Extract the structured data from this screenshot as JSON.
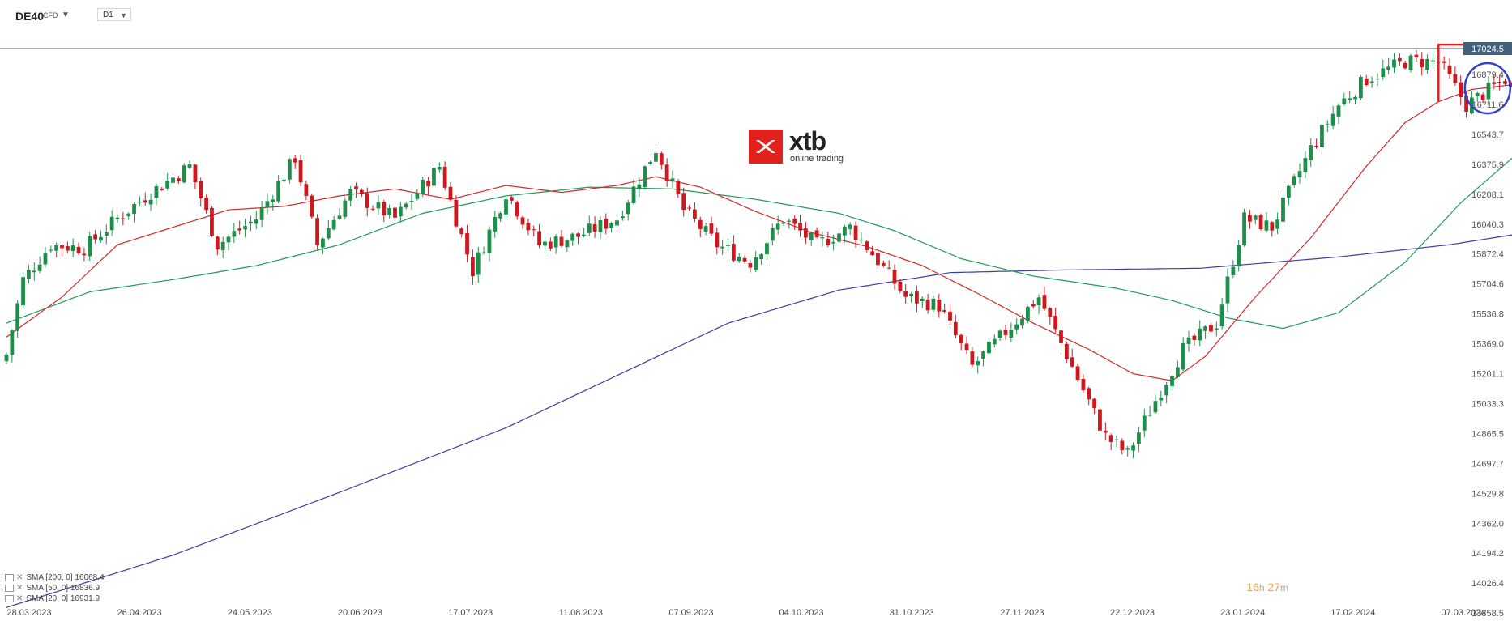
{
  "header": {
    "symbol": "DE40",
    "symbol_suffix": "CFD",
    "timeframe": "D1"
  },
  "logo": {
    "name": "xtb",
    "tagline": "online trading"
  },
  "timer": {
    "hours": "16",
    "h": "h",
    "minutes": "27",
    "m": "m"
  },
  "legend": [
    {
      "text": "SMA [200, 0] 16068.4"
    },
    {
      "text": "SMA [50, 0] 16836.9"
    },
    {
      "text": "SMA [20, 0] 16931.9"
    }
  ],
  "colors": {
    "up": "#1e8f4a",
    "down": "#d0171d",
    "sma20": "#d62728",
    "sma50": "#1f9a5a",
    "sma200": "#3a3fa0",
    "annotation": "#e3201b",
    "circle": "#3240c8"
  },
  "chart_data": {
    "type": "candlestick",
    "instrument": "DE40",
    "timeframe": "D1",
    "current_price": "17024.5",
    "y_ticks": [
      "16879.4",
      "16711.6",
      "16543.7",
      "16375.9",
      "16208.1",
      "16040.3",
      "15872.4",
      "15704.6",
      "15536.8",
      "15369.0",
      "15201.1",
      "15033.3",
      "14865.5",
      "14697.7",
      "14529.8",
      "14362.0",
      "14194.2",
      "14026.4",
      "13858.5"
    ],
    "ylim": [
      13858.5,
      17047.2
    ],
    "x_ticks": [
      "28.03.2023",
      "26.04.2023",
      "24.05.2023",
      "20.06.2023",
      "17.07.2023",
      "11.08.2023",
      "07.09.2023",
      "04.10.2023",
      "31.10.2023",
      "27.11.2023",
      "22.12.2023",
      "23.01.2024",
      "17.02.2024",
      "07.03.2024"
    ],
    "close_anchors": [
      [
        0,
        15270
      ],
      [
        3,
        15700
      ],
      [
        8,
        15900
      ],
      [
        14,
        15880
      ],
      [
        20,
        16050
      ],
      [
        26,
        16200
      ],
      [
        33,
        16350
      ],
      [
        38,
        15900
      ],
      [
        45,
        16050
      ],
      [
        52,
        16400
      ],
      [
        56,
        15900
      ],
      [
        62,
        16200
      ],
      [
        70,
        16050
      ],
      [
        78,
        16350
      ],
      [
        84,
        15750
      ],
      [
        90,
        16200
      ],
      [
        96,
        15900
      ],
      [
        103,
        15950
      ],
      [
        110,
        16050
      ],
      [
        117,
        16450
      ],
      [
        122,
        16100
      ],
      [
        128,
        15900
      ],
      [
        134,
        15800
      ],
      [
        140,
        16050
      ],
      [
        146,
        15900
      ],
      [
        152,
        16000
      ],
      [
        156,
        15850
      ],
      [
        162,
        15600
      ],
      [
        168,
        15550
      ],
      [
        174,
        15200
      ],
      [
        180,
        15400
      ],
      [
        186,
        15600
      ],
      [
        192,
        15200
      ],
      [
        198,
        14800
      ],
      [
        202,
        14700
      ],
      [
        206,
        14950
      ],
      [
        212,
        15300
      ],
      [
        218,
        15450
      ],
      [
        223,
        16050
      ],
      [
        228,
        16000
      ],
      [
        235,
        16450
      ],
      [
        240,
        16700
      ],
      [
        245,
        16850
      ],
      [
        252,
        16950
      ],
      [
        258,
        16950
      ],
      [
        263,
        16700
      ],
      [
        270,
        16850
      ],
      [
        274,
        16600
      ],
      [
        280,
        16800
      ],
      [
        286,
        17050
      ],
      [
        292,
        16950
      ],
      [
        297,
        17020
      ]
    ],
    "series": [
      {
        "name": "SMA [200, 0] 16068.4",
        "points": [
          [
            0,
            13820
          ],
          [
            30,
            14120
          ],
          [
            60,
            14480
          ],
          [
            90,
            14850
          ],
          [
            110,
            15150
          ],
          [
            130,
            15450
          ],
          [
            150,
            15640
          ],
          [
            170,
            15740
          ],
          [
            190,
            15755
          ],
          [
            215,
            15765
          ],
          [
            240,
            15830
          ],
          [
            260,
            15900
          ],
          [
            280,
            16000
          ],
          [
            297,
            16068.4
          ]
        ]
      },
      {
        "name": "SMA [50, 0] 16836.9",
        "points": [
          [
            0,
            15450
          ],
          [
            15,
            15630
          ],
          [
            30,
            15700
          ],
          [
            45,
            15780
          ],
          [
            60,
            15900
          ],
          [
            75,
            16080
          ],
          [
            90,
            16180
          ],
          [
            105,
            16230
          ],
          [
            120,
            16220
          ],
          [
            135,
            16160
          ],
          [
            150,
            16080
          ],
          [
            160,
            15980
          ],
          [
            172,
            15820
          ],
          [
            185,
            15720
          ],
          [
            200,
            15650
          ],
          [
            210,
            15580
          ],
          [
            220,
            15480
          ],
          [
            230,
            15420
          ],
          [
            240,
            15510
          ],
          [
            252,
            15800
          ],
          [
            262,
            16140
          ],
          [
            275,
            16500
          ],
          [
            285,
            16700
          ],
          [
            297,
            16836.9
          ]
        ]
      },
      {
        "name": "SMA [20, 0] 16931.9",
        "points": [
          [
            0,
            15370
          ],
          [
            10,
            15600
          ],
          [
            20,
            15900
          ],
          [
            30,
            16000
          ],
          [
            40,
            16100
          ],
          [
            50,
            16120
          ],
          [
            60,
            16180
          ],
          [
            70,
            16220
          ],
          [
            80,
            16160
          ],
          [
            90,
            16240
          ],
          [
            100,
            16200
          ],
          [
            110,
            16240
          ],
          [
            117,
            16290
          ],
          [
            125,
            16230
          ],
          [
            135,
            16090
          ],
          [
            145,
            15970
          ],
          [
            155,
            15890
          ],
          [
            165,
            15780
          ],
          [
            175,
            15620
          ],
          [
            185,
            15450
          ],
          [
            195,
            15300
          ],
          [
            203,
            15160
          ],
          [
            210,
            15120
          ],
          [
            216,
            15260
          ],
          [
            225,
            15600
          ],
          [
            235,
            15940
          ],
          [
            245,
            16350
          ],
          [
            252,
            16600
          ],
          [
            258,
            16720
          ],
          [
            264,
            16790
          ],
          [
            272,
            16820
          ],
          [
            280,
            16820
          ],
          [
            290,
            16870
          ],
          [
            297,
            16931.9
          ]
        ]
      }
    ],
    "annotations": [
      {
        "type": "resistance_line",
        "price": 17047.2,
        "from_bar": 258,
        "to_bar": 327
      },
      {
        "type": "marker",
        "price": 16960,
        "from_bar": 300,
        "to_bar": 311
      },
      {
        "type": "marker",
        "price": 16860,
        "from_bar": 300,
        "to_bar": 311
      },
      {
        "type": "circle",
        "bar": 268,
        "price": 16820
      },
      {
        "type": "circle",
        "bar": 278,
        "price": 16770
      }
    ]
  }
}
